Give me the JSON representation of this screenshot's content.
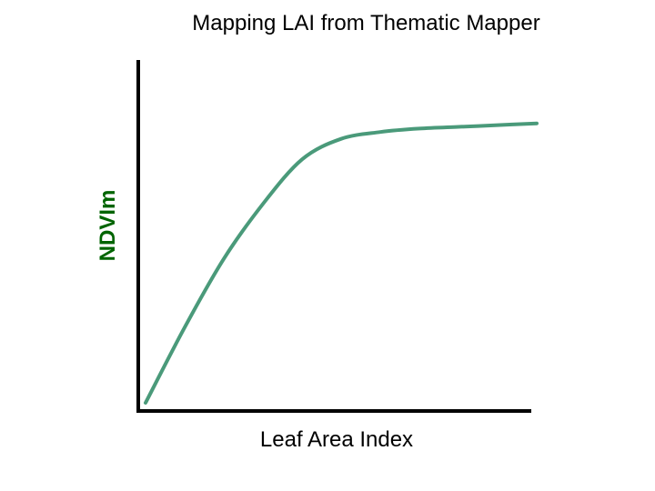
{
  "chart_data": {
    "type": "line",
    "title": "Mapping LAI from Thematic Mapper",
    "xlabel": "Leaf Area Index",
    "ylabel": "NDVIm",
    "grid": false,
    "legend": "none",
    "xlim": [
      0,
      1
    ],
    "ylim": [
      0,
      1
    ],
    "series": [
      {
        "color": "#4a9a7a",
        "x": [
          0.0,
          0.1,
          0.2,
          0.3,
          0.4,
          0.5,
          0.6,
          0.7,
          0.8,
          0.9,
          1.0
        ],
        "y": [
          0.0,
          0.22,
          0.42,
          0.58,
          0.71,
          0.77,
          0.79,
          0.8,
          0.805,
          0.81,
          0.815
        ]
      }
    ]
  }
}
